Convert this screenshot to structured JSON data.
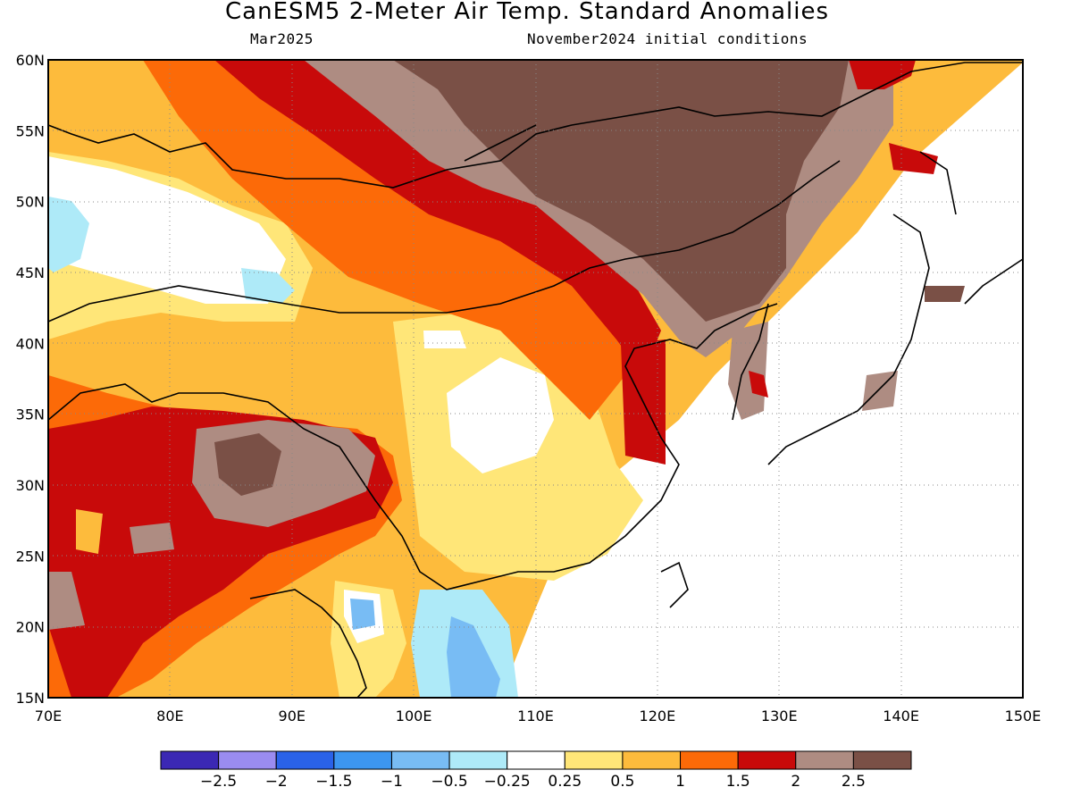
{
  "header": {
    "title": "CanESM5 2-Meter Air Temp. Standard Anomalies",
    "valid_month": "Mar2025",
    "init": "November2024 initial conditions"
  },
  "map": {
    "lon_range": [
      70,
      150
    ],
    "lat_range": [
      15,
      60
    ],
    "lat_labels": [
      "15N",
      "20N",
      "25N",
      "30N",
      "35N",
      "40N",
      "45N",
      "50N",
      "55N",
      "60N"
    ],
    "lon_labels": [
      "70E",
      "80E",
      "90E",
      "100E",
      "110E",
      "120E",
      "130E",
      "140E",
      "150E"
    ],
    "gridlines": "dotted"
  },
  "colorbar": {
    "colors": [
      "#3b28b4",
      "#9a8cf0",
      "#2a62e8",
      "#3c96f0",
      "#78bcf4",
      "#aeeaf8",
      "#ffffff",
      "#ffe678",
      "#fdbb3c",
      "#fc6a08",
      "#c80a0a",
      "#ae8c82",
      "#7a5046"
    ],
    "labels": [
      "-2.5",
      "-2",
      "-1.5",
      "-1",
      "-0.5",
      "-0.25",
      "0.25",
      "0.5",
      "1",
      "1.5",
      "2",
      "2.5"
    ]
  }
}
